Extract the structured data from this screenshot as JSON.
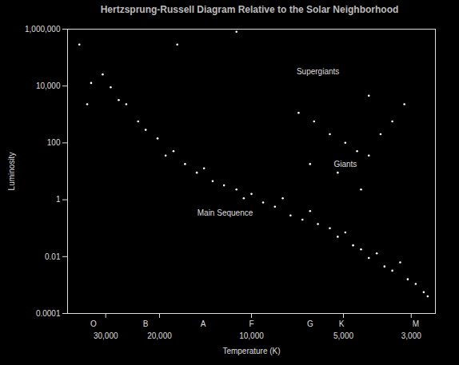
{
  "chart_data": {
    "type": "scatter",
    "title": "Hertzsprung-Russell Diagram Relative to the Solar Neighborhood",
    "x_label": "Temperature (K)",
    "y_label": "Luminosity",
    "log": true,
    "grid": false,
    "color": "#ffffff",
    "marker": "dot",
    "xlim": [
      40000,
      2500
    ],
    "ylim": [
      0.0001,
      1000000
    ],
    "xticks": [
      {
        "value": 30000,
        "label": "30,000"
      },
      {
        "value": 20000,
        "label": "20,000"
      },
      {
        "value": 10000,
        "label": "10,000"
      },
      {
        "value": 5000,
        "label": "5,000"
      },
      {
        "value": 3000,
        "label": "3,000"
      }
    ],
    "yticks": [
      0.0001,
      0.01,
      1,
      100,
      {
        "value": 10000,
        "label": "10,000"
      },
      {
        "value": 1000000,
        "label": "1,000,000"
      }
    ],
    "spectral_classes": {
      "labels": [
        "O",
        "B",
        "A",
        "F",
        "G",
        "K",
        "M"
      ],
      "x": [
        32900,
        22200,
        14400,
        10000,
        6430,
        5070,
        2900
      ]
    },
    "annotations": [
      {
        "text": "Supergiants",
        "x": 6060,
        "y": 31600
      },
      {
        "text": "Giants",
        "x": 4930,
        "y": 18
      },
      {
        "text": "Main Sequence",
        "x": 12200,
        "y": 0.33
      }
    ],
    "x": [
      36600,
      33500,
      30700,
      28900,
      27200,
      25700,
      23500,
      22200,
      20300,
      19100,
      18000,
      16500,
      15100,
      14300,
      13400,
      12300,
      11200,
      10600,
      10000,
      9160,
      8380,
      7900,
      7450,
      6810,
      6430,
      6060,
      5540,
      5220,
      4930,
      4650,
      4380,
      4130,
      3890,
      3670,
      3460,
      3260,
      3080,
      2900,
      2730,
      2650,
      34500,
      17500,
      11200,
      7010,
      6240,
      5540,
      4930,
      4510,
      4130,
      3780,
      3460,
      3160,
      4130,
      5220,
      6430,
      4380
    ],
    "values": [
      288000,
      12800,
      25600,
      9080,
      3220,
      2280,
      571,
      287,
      143,
      36,
      51,
      18,
      9.0,
      12.7,
      4.5,
      3.2,
      2.3,
      1.13,
      1.6,
      0.8,
      0.57,
      1.13,
      0.28,
      0.2,
      0.4,
      0.14,
      0.1,
      0.05,
      0.071,
      0.025,
      0.018,
      0.009,
      0.013,
      0.0045,
      0.0032,
      0.0063,
      0.0016,
      0.0011,
      0.00056,
      0.0004,
      2280,
      288000,
      813000,
      1140,
      571,
      202,
      101,
      51,
      36,
      202,
      571,
      2280,
      4550,
      9.0,
      18,
      2.3
    ]
  }
}
